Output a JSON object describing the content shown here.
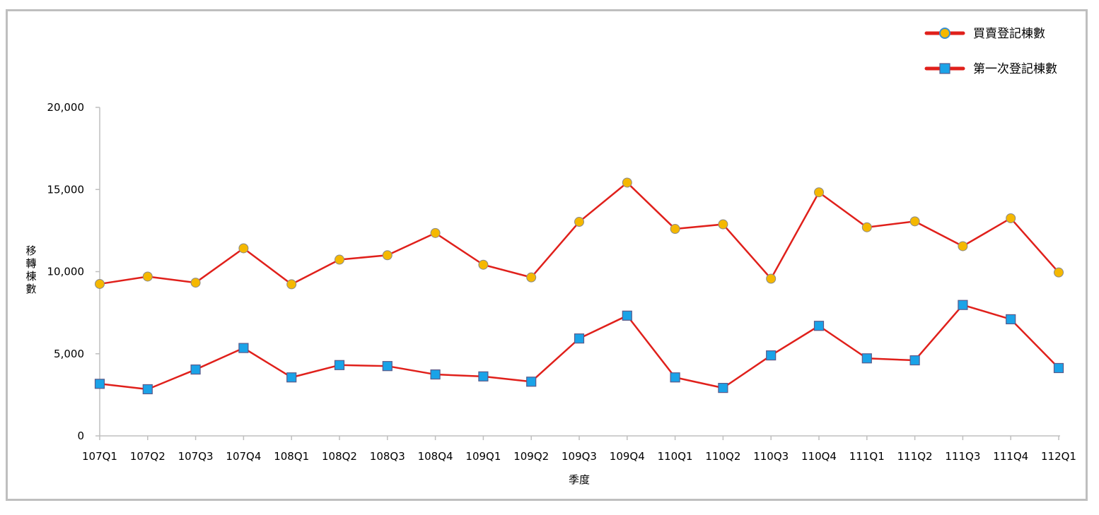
{
  "chart_data": {
    "type": "line",
    "categories": [
      "107Q1",
      "107Q2",
      "107Q3",
      "107Q4",
      "108Q1",
      "108Q2",
      "108Q3",
      "108Q4",
      "109Q1",
      "109Q2",
      "109Q3",
      "109Q4",
      "110Q1",
      "110Q2",
      "110Q3",
      "110Q4",
      "111Q1",
      "111Q2",
      "111Q3",
      "111Q4",
      "112Q1"
    ],
    "series": [
      {
        "name": "買賣登記棟數",
        "values": [
          9250,
          9700,
          9330,
          11420,
          9230,
          10730,
          11000,
          12350,
          10420,
          9650,
          13030,
          15420,
          12600,
          12880,
          9570,
          14830,
          12700,
          13060,
          11550,
          13250,
          9950
        ],
        "line_color": "#e0201b",
        "marker": "circle",
        "marker_color": "#f5b800",
        "marker_stroke": "#8a8a8a"
      },
      {
        "name": "第一次登記棟數",
        "values": [
          3170,
          2840,
          4040,
          5350,
          3560,
          4310,
          4250,
          3740,
          3620,
          3300,
          5930,
          7320,
          3560,
          2920,
          4900,
          6700,
          4720,
          4600,
          7970,
          7100,
          4130
        ],
        "line_color": "#e0201b",
        "marker": "square",
        "marker_color": "#1aa3e8",
        "marker_stroke": "#5a5a8a"
      }
    ],
    "ylim": [
      0,
      20000
    ],
    "yticks": [
      "0",
      "5,000",
      "10,000",
      "15,000",
      "20,000"
    ],
    "ytick_values": [
      0,
      5000,
      10000,
      15000,
      20000
    ],
    "xlabel": "季度",
    "ylabel": "移轉棟數",
    "grid": false,
    "legend_position": "top-right"
  }
}
